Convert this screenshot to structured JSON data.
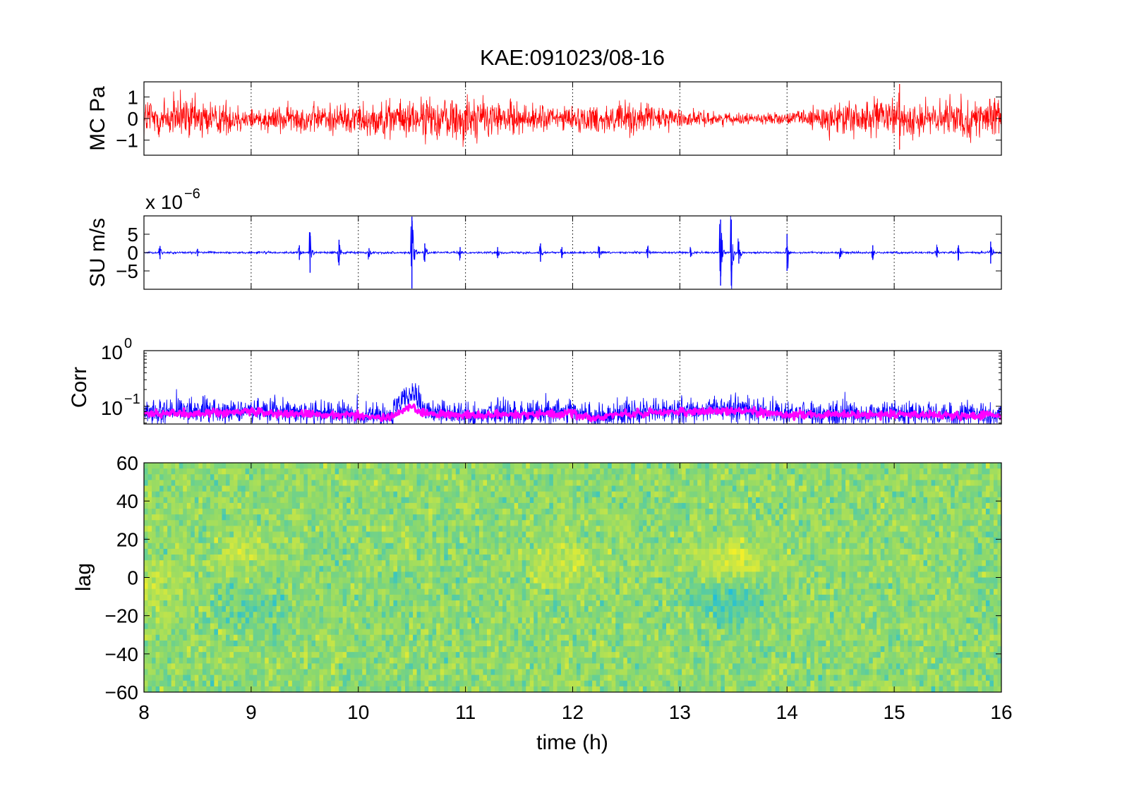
{
  "chart_data": [
    {
      "type": "line",
      "panel": "MC",
      "title": "KAE:091023/08-16",
      "ylabel": "MC Pa",
      "xlim": [
        8,
        16
      ],
      "ylim": [
        -1.7,
        1.7
      ],
      "yticks": [
        -1,
        0,
        1
      ],
      "ytick_labels": [
        "−1",
        "0",
        "1"
      ],
      "grid": "x dotted",
      "series": [
        {
          "color": "#ff0000",
          "x": [
            8,
            8.5,
            9,
            9.5,
            10,
            10.5,
            11,
            11.5,
            12,
            12.5,
            13,
            13.5,
            14,
            14.5,
            15,
            15.5,
            16
          ],
          "envelope": [
            0.95,
            0.8,
            0.45,
            0.55,
            0.6,
            0.7,
            0.9,
            0.55,
            0.45,
            0.65,
            0.35,
            0.2,
            0.2,
            0.7,
            0.7,
            0.65,
            0.7
          ]
        }
      ],
      "events": [
        {
          "x": 15.05,
          "amp": 1.6
        }
      ]
    },
    {
      "type": "line",
      "panel": "SU",
      "ylabel": "SU m/s",
      "scale_base": "x 10",
      "scale_exp": "−6",
      "xlim": [
        8,
        16
      ],
      "ylim": [
        -10,
        10
      ],
      "yticks": [
        -5,
        0,
        5
      ],
      "ytick_labels": [
        "−5",
        "0",
        "5"
      ],
      "grid": "x dotted",
      "series": [
        {
          "color": "#0000ff",
          "baseline_amp": 0.2,
          "bursts": [
            {
              "x": 8.15,
              "amp": 1.8
            },
            {
              "x": 8.5,
              "amp": 1.0
            },
            {
              "x": 9.45,
              "amp": 2.0
            },
            {
              "x": 9.55,
              "amp": 5.5
            },
            {
              "x": 9.82,
              "amp": 3.5
            },
            {
              "x": 10.1,
              "amp": 1.2
            },
            {
              "x": 10.5,
              "amp": 9.8
            },
            {
              "x": 10.62,
              "amp": 2.5
            },
            {
              "x": 10.95,
              "amp": 1.5
            },
            {
              "x": 11.3,
              "amp": 1.5
            },
            {
              "x": 11.7,
              "amp": 2.5
            },
            {
              "x": 11.9,
              "amp": 1.5
            },
            {
              "x": 12.25,
              "amp": 1.5
            },
            {
              "x": 12.7,
              "amp": 1.5
            },
            {
              "x": 13.1,
              "amp": 1.2
            },
            {
              "x": 13.38,
              "amp": 9.0
            },
            {
              "x": 13.48,
              "amp": 9.0
            },
            {
              "x": 13.55,
              "amp": 3.0
            },
            {
              "x": 14.0,
              "amp": 5.0
            },
            {
              "x": 14.5,
              "amp": 1.2
            },
            {
              "x": 14.8,
              "amp": 2.0
            },
            {
              "x": 15.4,
              "amp": 1.3
            },
            {
              "x": 15.6,
              "amp": 2.0
            },
            {
              "x": 15.9,
              "amp": 3.0
            }
          ]
        }
      ]
    },
    {
      "type": "line",
      "panel": "Corr",
      "ylabel": "Corr",
      "yscale": "log",
      "xlim": [
        8,
        16
      ],
      "ylim": [
        0.048,
        1.0
      ],
      "yticks": [
        0.1,
        1
      ],
      "ytick_labels": [
        {
          "base": "10",
          "exp": "−1"
        },
        {
          "base": "10",
          "exp": "0"
        }
      ],
      "grid": "x dotted",
      "series": [
        {
          "color": "#0000ff",
          "x": [
            8,
            8.5,
            9,
            9.5,
            10,
            10.3,
            10.5,
            10.6,
            10.8,
            11,
            11.5,
            12,
            12.2,
            12.4,
            13,
            13.5,
            14,
            14.5,
            15,
            15.5,
            16
          ],
          "y": [
            0.08,
            0.08,
            0.085,
            0.075,
            0.07,
            0.065,
            0.17,
            0.08,
            0.075,
            0.07,
            0.075,
            0.08,
            0.06,
            0.075,
            0.08,
            0.09,
            0.075,
            0.07,
            0.075,
            0.07,
            0.07
          ]
        },
        {
          "color": "#ff00ff",
          "x": [
            8,
            8.5,
            9,
            9.5,
            10,
            10.3,
            10.5,
            10.6,
            10.8,
            11,
            11.5,
            12,
            12.2,
            12.4,
            13,
            13.5,
            14,
            14.5,
            15,
            15.5,
            16
          ],
          "y": [
            0.075,
            0.075,
            0.08,
            0.072,
            0.068,
            0.062,
            0.1,
            0.075,
            0.072,
            0.068,
            0.072,
            0.075,
            0.058,
            0.072,
            0.078,
            0.085,
            0.072,
            0.068,
            0.072,
            0.068,
            0.068
          ]
        }
      ]
    },
    {
      "type": "heatmap",
      "panel": "lag",
      "ylabel": "lag",
      "xlabel": "time (h)",
      "xlim": [
        8,
        16
      ],
      "ylim": [
        -60,
        60
      ],
      "xticks": [
        8,
        9,
        10,
        11,
        12,
        13,
        14,
        15,
        16
      ],
      "yticks": [
        -60,
        -40,
        -20,
        0,
        20,
        40,
        60
      ],
      "ytick_labels": [
        "−60",
        "−40",
        "−20",
        "0",
        "20",
        "40",
        "60"
      ],
      "colormap": [
        "#22bfd8",
        "#8fd96a",
        "#f2ef2a"
      ],
      "features": [
        {
          "x": 13.5,
          "lag": 8,
          "value": 0.9
        },
        {
          "x": 13.5,
          "lag": -12,
          "value": -0.9
        },
        {
          "x": 11.9,
          "lag": 8,
          "value": 0.6
        },
        {
          "x": 9.0,
          "lag": 12,
          "value": 0.5
        },
        {
          "x": 9.0,
          "lag": -15,
          "value": -0.5
        },
        {
          "x": 8.05,
          "lag": -5,
          "value": 0.7
        }
      ]
    }
  ]
}
